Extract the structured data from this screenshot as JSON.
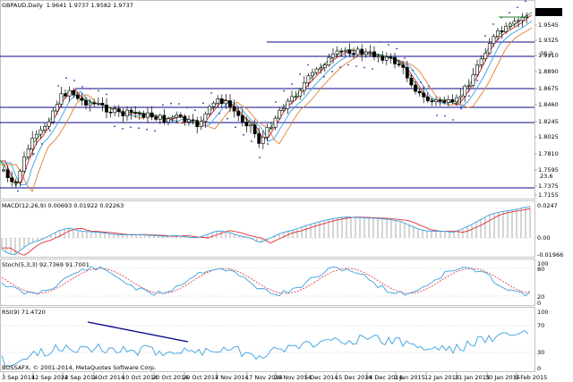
{
  "header": {
    "symbol_line": "GBPAUD,Daily",
    "ohlc": "1.9641 1.9737 1.9582 1.9737"
  },
  "current_price": "1.9737",
  "colors": {
    "background": "#ffffff",
    "candle": "#000000",
    "hline": "#0a0a8a",
    "ma_fast": "#d02030",
    "ma_mid": "#3aa0e0",
    "ma_slow": "#e08030",
    "ma_extra": "#2c9b3c",
    "sar": "#3030b0",
    "macd_line": "#3aa0e0",
    "signal_line": "#e03030",
    "stoch_main": "#3aa0e0",
    "stoch_signal": "#e03030",
    "rsi": "#3aa0e0",
    "trendline": "#0a0a8a",
    "resistance_green": "#2c8a2c"
  },
  "price_axis_labels": [
    "1.9737",
    "1.9545",
    "1.9325",
    "1.9110",
    "1.8890",
    "1.8675",
    "1.8460",
    "1.8245",
    "1.8025",
    "1.7810",
    "1.7595",
    "1.7375",
    "1.7155"
  ],
  "fib_labels": [
    "38.2",
    "23.6"
  ],
  "date_labels": [
    "3 Sep 2014",
    "12 Sep 2014",
    "22 Sep 2014",
    "1 Oct 2014",
    "10 Oct 2014",
    "20 Oct 2014",
    "29 Oct 2014",
    "7 Nov 2014",
    "17 Nov 2014",
    "26 Nov 2014",
    "5 Dec 2014",
    "15 Dec 2014",
    "24 Dec 2014",
    "2 Jan 2015",
    "12 Jan 2015",
    "21 Jan 2015",
    "30 Jan 2015",
    "9 Feb 2015"
  ],
  "macd": {
    "title": "MACD(12,26,9) 0.00693 0.01922 0.02263",
    "axis_labels": [
      "0.0247",
      "0.00",
      "-0.01966"
    ]
  },
  "stoch": {
    "title": "Stoch(5,3,3) 92.7369 91.7001",
    "axis_labels": [
      "100",
      "80",
      "20",
      "0"
    ]
  },
  "rsi": {
    "title": "RSI(9) 71.4720",
    "axis_labels": [
      "100",
      "70",
      "30",
      "0"
    ]
  },
  "copyright": "BOSSAFX, © 2001-2014, MetaQuotes Software Corp."
}
